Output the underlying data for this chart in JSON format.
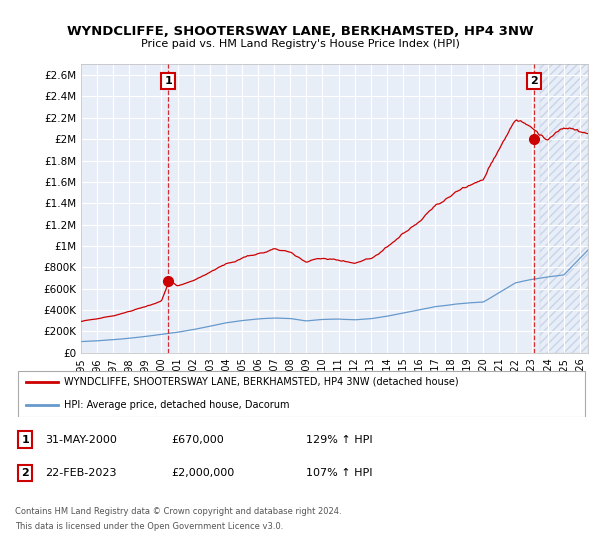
{
  "title": "WYNDCLIFFE, SHOOTERSWAY LANE, BERKHAMSTED, HP4 3NW",
  "subtitle": "Price paid vs. HM Land Registry's House Price Index (HPI)",
  "ylim": [
    0,
    2700000
  ],
  "yticks": [
    0,
    200000,
    400000,
    600000,
    800000,
    1000000,
    1200000,
    1400000,
    1600000,
    1800000,
    2000000,
    2200000,
    2400000,
    2600000
  ],
  "ytick_labels": [
    "£0",
    "£200K",
    "£400K",
    "£600K",
    "£800K",
    "£1M",
    "£1.2M",
    "£1.4M",
    "£1.6M",
    "£1.8M",
    "£2M",
    "£2.2M",
    "£2.4M",
    "£2.6M"
  ],
  "xlim_start": 1995.0,
  "xlim_end": 2026.5,
  "data_end": 2023.5,
  "sale1_x": 2000.417,
  "sale1_y": 670000,
  "sale1_label": "1",
  "sale1_date": "31-MAY-2000",
  "sale1_price": "£670,000",
  "sale1_hpi": "129% ↑ HPI",
  "sale2_x": 2023.13,
  "sale2_y": 2000000,
  "sale2_label": "2",
  "sale2_date": "22-FEB-2023",
  "sale2_price": "£2,000,000",
  "sale2_hpi": "107% ↑ HPI",
  "red_color": "#cc0000",
  "blue_color": "#6699cc",
  "legend_label_red": "WYNDCLIFFE, SHOOTERSWAY LANE, BERKHAMSTED, HP4 3NW (detached house)",
  "legend_label_blue": "HPI: Average price, detached house, Dacorum",
  "footer_line1": "Contains HM Land Registry data © Crown copyright and database right 2024.",
  "footer_line2": "This data is licensed under the Open Government Licence v3.0.",
  "background_color": "#ffffff",
  "plot_bg_color": "#e8eef8",
  "grid_color": "#ffffff",
  "hatch_color": "#c8d4e8"
}
